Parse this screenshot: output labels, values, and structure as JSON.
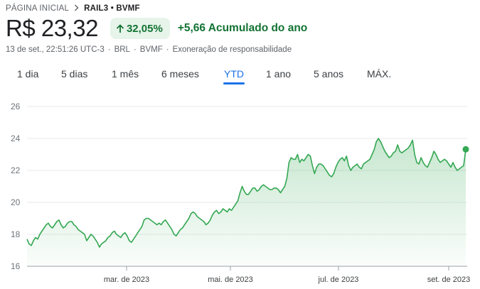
{
  "breadcrumb": {
    "home": "PÁGINA INICIAL",
    "ticker": "RAIL3 • BVMF"
  },
  "quote": {
    "price": "R$ 23,32",
    "percent_change": "32,05%",
    "abs_change": "+5,66 Acumulado do ano",
    "timestamp": "13 de set., 22:51:26 UTC-3",
    "currency": "BRL",
    "exchange": "BVMF",
    "disclaimer": "Exoneração de responsabilidade",
    "positive_color": "#137333"
  },
  "ranges": [
    {
      "label": "1 dia"
    },
    {
      "label": "5 dias"
    },
    {
      "label": "1 mês"
    },
    {
      "label": "6 meses"
    },
    {
      "label": "YTD",
      "selected": true
    },
    {
      "label": "1 ano"
    },
    {
      "label": "5 anos"
    },
    {
      "label": "MÁX."
    }
  ],
  "icons": {
    "breadcrumb_separator": "chevron-right-icon",
    "change_indicator": "arrow-up-icon"
  },
  "chart_data": {
    "type": "area",
    "series": [
      {
        "values": [
          17.7,
          17.4,
          17.3,
          17.6,
          17.8,
          17.7,
          18.0,
          18.2,
          18.4,
          18.6,
          18.7,
          18.5,
          18.4,
          18.6,
          18.8,
          18.9,
          18.6,
          18.4,
          18.5,
          18.7,
          18.8,
          18.8,
          18.6,
          18.5,
          18.3,
          18.2,
          18.1,
          18.0,
          17.6,
          17.8,
          18.0,
          17.9,
          17.7,
          17.5,
          17.2,
          17.4,
          17.5,
          17.6,
          17.8,
          17.9,
          18.1,
          18.2,
          18.0,
          17.9,
          17.8,
          18.0,
          18.1,
          17.9,
          17.6,
          17.5,
          17.7,
          17.9,
          18.1,
          18.3,
          18.5,
          18.9,
          19.0,
          19.0,
          18.9,
          18.8,
          18.7,
          18.6,
          18.7,
          18.6,
          18.8,
          18.9,
          18.7,
          18.5,
          18.3,
          18.0,
          17.9,
          18.1,
          18.3,
          18.4,
          18.6,
          18.8,
          19.0,
          19.3,
          19.4,
          19.3,
          19.1,
          19.0,
          18.9,
          18.8,
          18.6,
          18.7,
          18.9,
          19.2,
          19.4,
          19.5,
          19.3,
          19.4,
          19.6,
          19.5,
          19.4,
          19.6,
          19.5,
          19.7,
          19.9,
          20.1,
          20.6,
          21.0,
          20.7,
          20.5,
          20.5,
          20.7,
          20.9,
          20.9,
          20.7,
          20.8,
          21.0,
          21.1,
          21.0,
          20.9,
          20.8,
          20.8,
          20.9,
          20.9,
          20.8,
          20.6,
          20.8,
          21.0,
          21.5,
          22.5,
          22.8,
          22.7,
          22.7,
          23.0,
          22.5,
          22.7,
          22.6,
          22.8,
          23.0,
          22.9,
          22.3,
          21.8,
          22.2,
          22.4,
          22.4,
          22.3,
          22.1,
          21.9,
          21.7,
          21.6,
          21.8,
          22.2,
          22.5,
          22.7,
          22.8,
          22.6,
          22.9,
          22.3,
          22.0,
          22.2,
          22.3,
          22.4,
          22.2,
          22.1,
          22.4,
          22.5,
          22.6,
          22.7,
          23.0,
          23.3,
          23.8,
          24.0,
          23.8,
          23.5,
          23.2,
          23.0,
          22.8,
          22.9,
          23.1,
          23.2,
          23.6,
          23.2,
          23.1,
          23.2,
          23.3,
          23.4,
          23.6,
          23.9,
          23.0,
          22.5,
          22.4,
          22.8,
          22.5,
          22.3,
          22.2,
          22.5,
          22.8,
          23.2,
          23.0,
          22.7,
          22.5,
          22.6,
          22.7,
          22.6,
          22.4,
          22.2,
          22.5,
          22.2,
          22.0,
          22.1,
          22.2,
          22.3,
          23.32
        ]
      }
    ],
    "x_tick_labels": [
      "mar. de 2023",
      "mai. de 2023",
      "jul. de 2023",
      "set. de 2023"
    ],
    "y_ticks": [
      16,
      18,
      20,
      22,
      24,
      26
    ],
    "ylim": [
      16,
      26
    ],
    "grid": true,
    "line_color": "#34a853"
  }
}
